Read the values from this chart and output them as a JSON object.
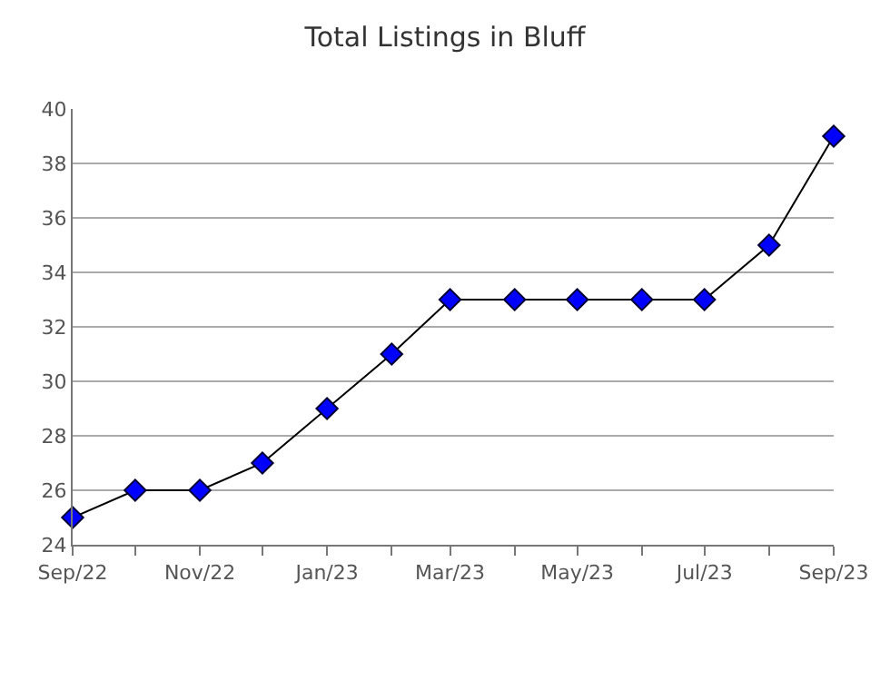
{
  "chart_data": {
    "type": "line",
    "title": "Total Listings in Bluff",
    "x": [
      "2022-09",
      "2022-10",
      "2022-11",
      "2022-12",
      "2023-01",
      "2023-02",
      "2023-03",
      "2023-04",
      "2023-05",
      "2023-06",
      "2023-07",
      "2023-08",
      "2023-09"
    ],
    "series": [
      {
        "color": "#0000ff",
        "values": [
          25,
          26,
          26,
          27,
          29,
          31,
          33,
          33,
          33,
          33,
          33,
          35,
          39
        ]
      }
    ],
    "xlim": [
      "2022-09",
      "2023-09"
    ],
    "xticks": [
      {
        "value": "2022-09",
        "label": "Sep/22"
      },
      {
        "value": "2022-10",
        "label": null
      },
      {
        "value": "2022-11",
        "label": "Nov/22"
      },
      {
        "value": "2022-12",
        "label": null
      },
      {
        "value": "2023-01",
        "label": "Jan/23"
      },
      {
        "value": "2023-02",
        "label": null
      },
      {
        "value": "2023-03",
        "label": "Mar/23"
      },
      {
        "value": "2023-04",
        "label": null
      },
      {
        "value": "2023-05",
        "label": "May/23"
      },
      {
        "value": "2023-06",
        "label": null
      },
      {
        "value": "2023-07",
        "label": "Jul/23"
      },
      {
        "value": "2023-08",
        "label": null
      },
      {
        "value": "2023-09",
        "label": "Sep/23"
      }
    ],
    "ylim": [
      24,
      40
    ],
    "yticks": [
      24,
      26,
      28,
      30,
      32,
      34,
      36,
      38,
      40
    ],
    "grid": "y",
    "marker": "diamond",
    "line_style": "solid",
    "legend": false
  }
}
